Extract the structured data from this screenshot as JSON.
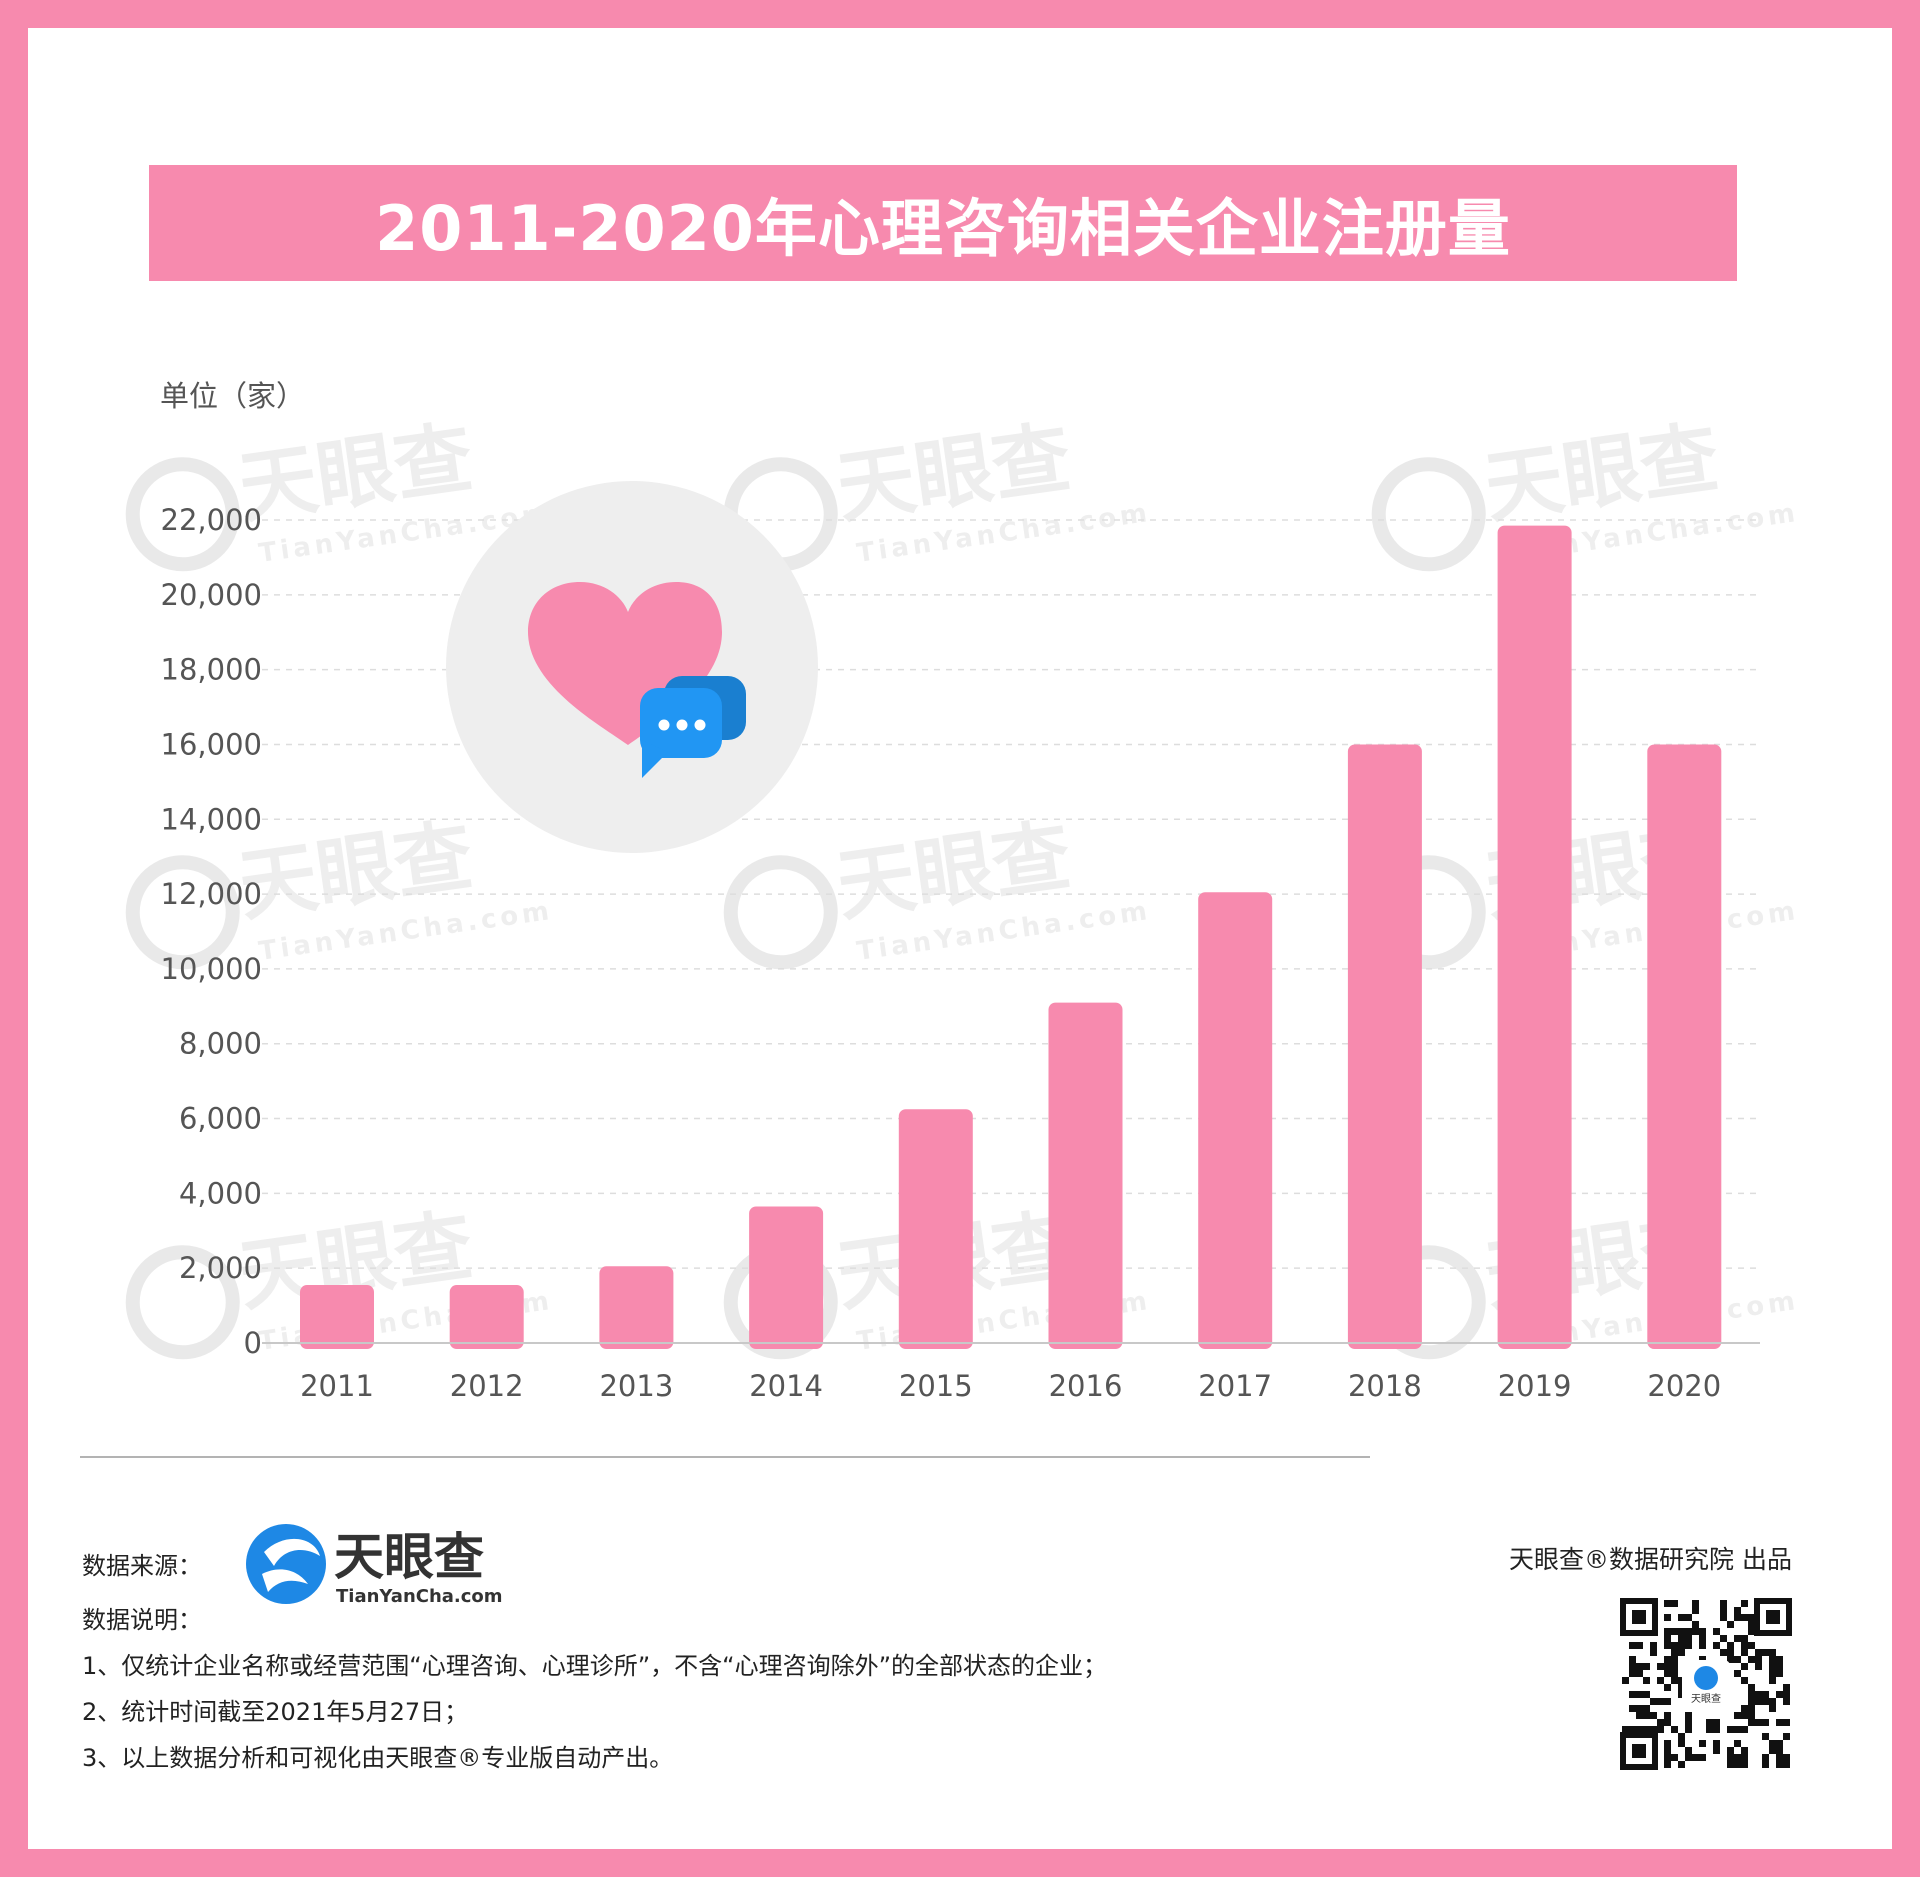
{
  "title": "2011-2020年心理咨询相关企业注册量",
  "unit_label": "单位（家）",
  "watermark": {
    "brand": "天眼查",
    "site": "TianYanCha.com"
  },
  "chart_data": {
    "type": "bar",
    "title": "2011-2020年心理咨询相关企业注册量",
    "ylabel": "单位（家）",
    "xlabel": "",
    "categories": [
      "2011",
      "2012",
      "2013",
      "2014",
      "2015",
      "2016",
      "2017",
      "2018",
      "2019",
      "2020"
    ],
    "values": [
      1550,
      1550,
      2050,
      3650,
      6250,
      9100,
      12050,
      16000,
      21850,
      16000
    ],
    "ylim": [
      0,
      22000
    ],
    "yticks": [
      0,
      2000,
      4000,
      6000,
      8000,
      10000,
      12000,
      14000,
      16000,
      18000,
      20000,
      22000
    ],
    "ytick_labels": [
      "0",
      "2,000",
      "4,000",
      "6,000",
      "8,000",
      "10,000",
      "12,000",
      "14,000",
      "16,000",
      "18,000",
      "20,000",
      "22,000"
    ],
    "grid": true,
    "legend": "none",
    "bar_color": "#f78aae"
  },
  "footer": {
    "source_label": "数据来源：",
    "logo_brand": "天眼查",
    "logo_site": "TianYanCha.com",
    "notes_title": "数据说明：",
    "notes": [
      "1、仅统计企业名称或经营范围“心理咨询、心理诊所”，不含“心理咨询除外”的全部状态的企业；",
      "2、统计时间截至2021年5月27日；",
      "3、以上数据分析和可视化由天眼查®专业版自动产出。"
    ],
    "producer": "天眼查®数据研究院 出品",
    "qr_logo": "天眼查"
  },
  "colors": {
    "frame": "#f78aae",
    "bar": "#f78aae",
    "bubble_blue": "#2196f3",
    "bubble_dark": "#1a7fd0",
    "circle_bg": "#eeeeee",
    "grid": "#dddddd"
  },
  "icons": [
    "heart-icon",
    "chat-bubble-icon",
    "tianyancha-logo-icon",
    "qr-code-icon"
  ]
}
